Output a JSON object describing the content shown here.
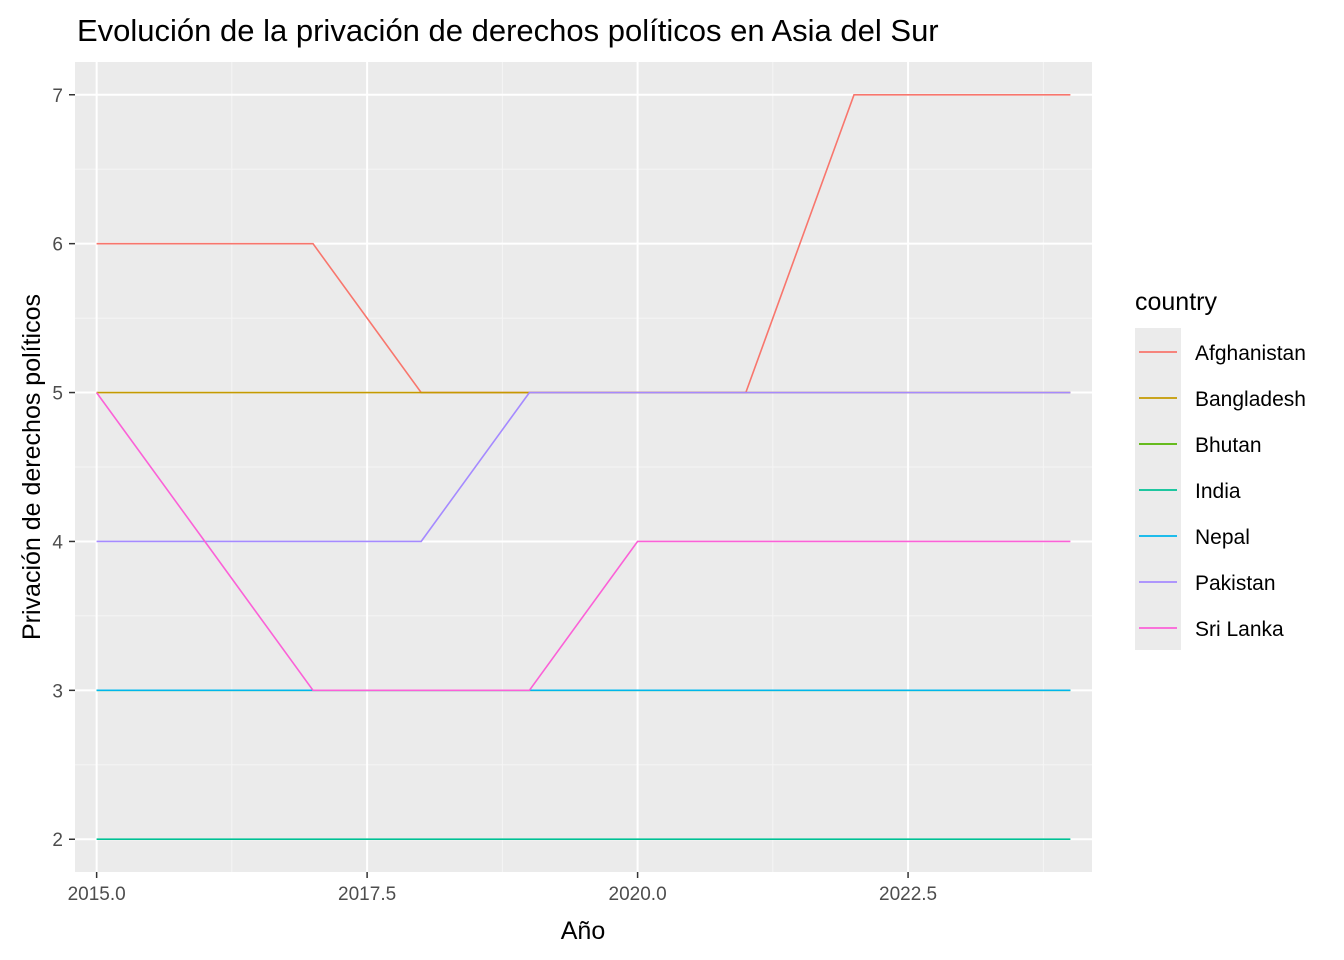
{
  "chart_data": {
    "type": "line",
    "title": "Evolución de la privación de derechos políticos en Asia del Sur",
    "xlabel": "Año",
    "ylabel": "Privación de derechos políticos",
    "xlim": [
      2014.8,
      2024.2
    ],
    "ylim": [
      1.78,
      7.22
    ],
    "x_ticks": [
      2015.0,
      2017.5,
      2020.0,
      2022.5
    ],
    "x_tick_labels": [
      "2015.0",
      "2017.5",
      "2020.0",
      "2022.5"
    ],
    "y_ticks": [
      2,
      3,
      4,
      5,
      6,
      7
    ],
    "y_tick_labels": [
      "2",
      "3",
      "4",
      "5",
      "6",
      "7"
    ],
    "grid": true,
    "legend": {
      "title": "country",
      "placement": "right"
    },
    "x": [
      2015,
      2016,
      2017,
      2018,
      2019,
      2020,
      2021,
      2022,
      2023,
      2024
    ],
    "series": [
      {
        "name": "Afghanistan",
        "color": "#F8766D",
        "values": [
          6,
          6,
          6,
          5,
          5,
          5,
          5,
          7,
          7,
          7
        ]
      },
      {
        "name": "Bangladesh",
        "color": "#C49A00",
        "values": [
          5,
          5,
          5,
          5,
          5,
          5,
          5,
          5,
          5,
          5
        ]
      },
      {
        "name": "Bhutan",
        "color": "#53B400",
        "values": [
          3,
          3,
          3,
          3,
          3,
          3,
          3,
          3,
          3,
          3
        ]
      },
      {
        "name": "India",
        "color": "#00C094",
        "values": [
          2,
          2,
          2,
          2,
          2,
          2,
          2,
          2,
          2,
          2
        ]
      },
      {
        "name": "Nepal",
        "color": "#00B6EB",
        "values": [
          3,
          3,
          3,
          3,
          3,
          3,
          3,
          3,
          3,
          3
        ]
      },
      {
        "name": "Pakistan",
        "color": "#A58AFF",
        "values": [
          4,
          4,
          4,
          4,
          5,
          5,
          5,
          5,
          5,
          5
        ]
      },
      {
        "name": "Sri Lanka",
        "color": "#FB61D7",
        "values": [
          5,
          4,
          3,
          3,
          3,
          4,
          4,
          4,
          4,
          4
        ]
      }
    ],
    "colors": {
      "panel_background": "#EBEBEB",
      "grid_major": "#FFFFFF",
      "grid_minor": "#F5F5F5",
      "tick": "#333333"
    }
  }
}
